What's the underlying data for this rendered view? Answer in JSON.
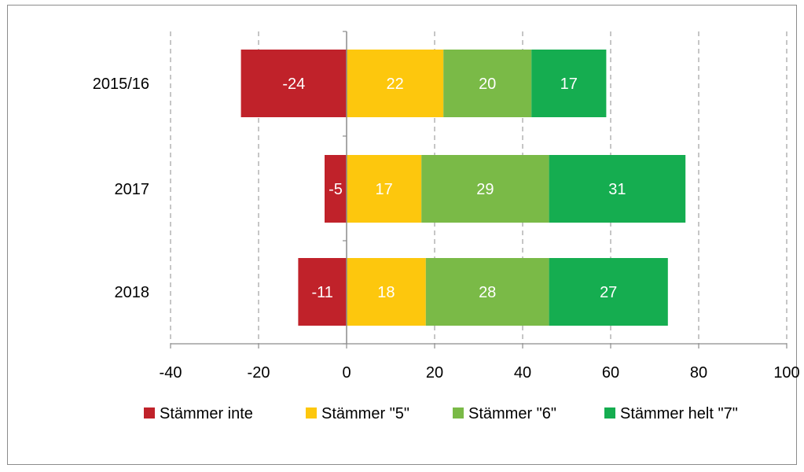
{
  "chart_data": {
    "type": "bar",
    "orientation": "horizontal",
    "stacked": true,
    "categories": [
      "2015/16",
      "2017",
      "2018"
    ],
    "series": [
      {
        "name": "Stämmer inte",
        "values": [
          -24,
          -5,
          -11
        ],
        "color": "#c0222a"
      },
      {
        "name": "Stämmer \"5\"",
        "values": [
          22,
          17,
          18
        ],
        "color": "#fdc70d"
      },
      {
        "name": "Stämmer \"6\"",
        "values": [
          20,
          29,
          28
        ],
        "color": "#7aba47"
      },
      {
        "name": "Stämmer helt \"7\"",
        "values": [
          17,
          31,
          27
        ],
        "color": "#15ad50"
      }
    ],
    "xlim": [
      -40,
      100
    ],
    "xticks": [
      "-40",
      "-20",
      "0",
      "20",
      "40",
      "60",
      "80",
      "100"
    ],
    "grid": "vertical dashed",
    "legend": "bottom"
  }
}
